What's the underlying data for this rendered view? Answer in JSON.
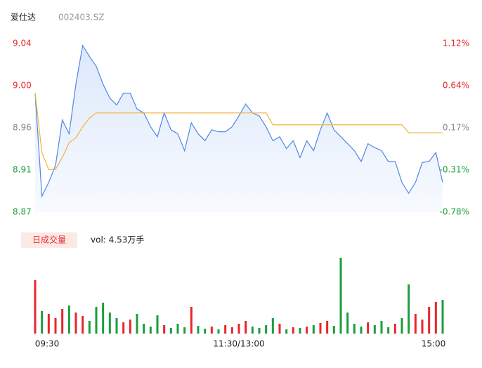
{
  "header": {
    "name": "爱仕达",
    "code": "002403.SZ"
  },
  "chart_data": [
    {
      "type": "line",
      "x": [
        0,
        4,
        8,
        12,
        16,
        20,
        24,
        28,
        32,
        36,
        40,
        44,
        48,
        52,
        56,
        60,
        64,
        68,
        72,
        76,
        80,
        84,
        88,
        92,
        96,
        100,
        104,
        108,
        112,
        116,
        120,
        124,
        128,
        132,
        136,
        140,
        144,
        148,
        152,
        156,
        160,
        164,
        168,
        172,
        176,
        180,
        184,
        188,
        192,
        196,
        200,
        204,
        208,
        212,
        216,
        220,
        224,
        228,
        232,
        236,
        240
      ],
      "xlim": [
        0,
        240
      ],
      "xticks": [
        {
          "value": 0,
          "label": "09:30"
        },
        {
          "value": 120,
          "label": "11:30/13:00"
        },
        {
          "value": 240,
          "label": "15:00"
        }
      ],
      "ylim": [
        8.87,
        9.04
      ],
      "yticks": [
        {
          "value": 8.87,
          "label": "8.87"
        },
        {
          "value": 8.9125,
          "label": "8.91"
        },
        {
          "value": 8.955,
          "label": "8.96"
        },
        {
          "value": 8.9975,
          "label": "9.00"
        },
        {
          "value": 9.04,
          "label": "9.04"
        }
      ],
      "y2lim": [
        -0.78,
        1.12
      ],
      "y2ticks": [
        {
          "value": -0.78,
          "label": "-0.78%"
        },
        {
          "value": -0.305,
          "label": "-0.31%"
        },
        {
          "value": 0.17,
          "label": "0.17%"
        },
        {
          "value": 0.645,
          "label": "0.64%"
        },
        {
          "value": 1.12,
          "label": "1.12%"
        }
      ],
      "up_color": "#e8262b",
      "down_color": "#1a9e3b",
      "flat_color": "#888888",
      "fill_color": "#d9e6fb",
      "grid": false,
      "series": [
        {
          "name": "price",
          "color": "#4f86e8",
          "values": [
            8.99,
            8.886,
            8.9,
            8.917,
            8.963,
            8.949,
            8.999,
            9.038,
            9.027,
            9.017,
            8.999,
            8.985,
            8.978,
            8.99,
            8.99,
            8.974,
            8.97,
            8.956,
            8.946,
            8.97,
            8.953,
            8.949,
            8.932,
            8.96,
            8.949,
            8.942,
            8.953,
            8.951,
            8.951,
            8.956,
            8.967,
            8.979,
            8.97,
            8.967,
            8.956,
            8.942,
            8.946,
            8.934,
            8.942,
            8.925,
            8.942,
            8.932,
            8.953,
            8.97,
            8.953,
            8.946,
            8.939,
            8.932,
            8.921,
            8.939,
            8.935,
            8.932,
            8.921,
            8.921,
            8.9,
            8.889,
            8.9,
            8.92,
            8.921,
            8.93,
            8.9
          ]
        },
        {
          "name": "average",
          "color": "#f0b43c",
          "values": [
            8.99,
            8.93,
            8.913,
            8.913,
            8.925,
            8.94,
            8.945,
            8.956,
            8.965,
            8.97,
            8.97,
            8.97,
            8.97,
            8.97,
            8.97,
            8.97,
            8.97,
            8.97,
            8.97,
            8.97,
            8.97,
            8.97,
            8.97,
            8.97,
            8.97,
            8.97,
            8.97,
            8.97,
            8.97,
            8.97,
            8.97,
            8.97,
            8.97,
            8.97,
            8.97,
            8.958,
            8.958,
            8.958,
            8.958,
            8.958,
            8.958,
            8.958,
            8.958,
            8.958,
            8.958,
            8.958,
            8.958,
            8.958,
            8.958,
            8.958,
            8.958,
            8.958,
            8.958,
            8.958,
            8.958,
            8.95,
            8.95,
            8.95,
            8.95,
            8.95,
            8.95
          ]
        }
      ]
    },
    {
      "type": "bar",
      "legend_badge": "日成交量",
      "volume_label": "vol: 4.53万手",
      "ylim": [
        0,
        110
      ],
      "values": [
        76,
        32,
        28,
        22,
        35,
        40,
        30,
        25,
        18,
        38,
        44,
        30,
        22,
        16,
        20,
        28,
        14,
        10,
        26,
        12,
        8,
        14,
        9,
        38,
        11,
        7,
        10,
        6,
        12,
        9,
        14,
        18,
        10,
        8,
        12,
        22,
        14,
        6,
        9,
        8,
        10,
        12,
        15,
        18,
        11,
        108,
        30,
        14,
        10,
        16,
        12,
        18,
        9,
        14,
        22,
        70,
        28,
        20,
        38,
        45,
        48
      ]
    }
  ]
}
